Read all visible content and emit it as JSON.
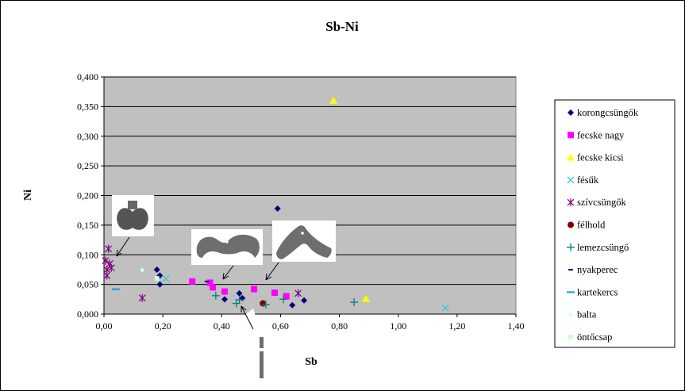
{
  "chart_data": {
    "type": "scatter",
    "title": "Sb-Ni",
    "xlabel": "Sb",
    "ylabel": "Ni",
    "xlim": [
      0,
      1.4
    ],
    "ylim": [
      0,
      0.4
    ],
    "x_ticks": [
      "0,00",
      "0,20",
      "0,40",
      "0,60",
      "0,80",
      "1,00",
      "1,20",
      "1,40"
    ],
    "y_ticks": [
      "0,000",
      "0,050",
      "0,100",
      "0,150",
      "0,200",
      "0,250",
      "0,300",
      "0,350",
      "0,400"
    ],
    "grid": "horizontal",
    "plot_background": "#c0c0c0",
    "legend_position": "right",
    "series": [
      {
        "name": "korongcsüngők",
        "marker": "diamond",
        "color": "#000080",
        "points": [
          [
            0.18,
            0.075
          ],
          [
            0.19,
            0.065
          ],
          [
            0.19,
            0.05
          ],
          [
            0.41,
            0.025
          ],
          [
            0.46,
            0.035
          ],
          [
            0.47,
            0.027
          ],
          [
            0.59,
            0.178
          ],
          [
            0.64,
            0.015
          ],
          [
            0.68,
            0.023
          ]
        ]
      },
      {
        "name": "fecske nagy",
        "marker": "square",
        "color": "#ff00ff",
        "points": [
          [
            0.3,
            0.055
          ],
          [
            0.36,
            0.053
          ],
          [
            0.37,
            0.045
          ],
          [
            0.41,
            0.038
          ],
          [
            0.51,
            0.042
          ],
          [
            0.58,
            0.036
          ],
          [
            0.62,
            0.03
          ]
        ]
      },
      {
        "name": "fecske kicsi",
        "marker": "triangle",
        "color": "#ffff00",
        "points": [
          [
            0.78,
            0.36
          ],
          [
            0.89,
            0.026
          ]
        ]
      },
      {
        "name": "fésűk",
        "marker": "x",
        "color": "#33cccc",
        "points": [
          [
            0.21,
            0.06
          ],
          [
            1.16,
            0.01
          ]
        ]
      },
      {
        "name": "szívcsüngők",
        "marker": "asterisk",
        "color": "#800080",
        "points": [
          [
            0.005,
            0.09
          ],
          [
            0.01,
            0.075
          ],
          [
            0.01,
            0.065
          ],
          [
            0.015,
            0.11
          ],
          [
            0.02,
            0.085
          ],
          [
            0.025,
            0.078
          ],
          [
            0.13,
            0.027
          ],
          [
            0.66,
            0.035
          ]
        ]
      },
      {
        "name": "félhold",
        "marker": "circle",
        "color": "#800000",
        "points": [
          [
            0.54,
            0.018
          ]
        ]
      },
      {
        "name": "lemezcsüngő",
        "marker": "plus",
        "color": "#008080",
        "points": [
          [
            0.38,
            0.031
          ],
          [
            0.45,
            0.018
          ],
          [
            0.46,
            0.024
          ],
          [
            0.55,
            0.016
          ],
          [
            0.61,
            0.025
          ],
          [
            0.85,
            0.02
          ]
        ]
      },
      {
        "name": "nyakperec",
        "marker": "dash-short",
        "color": "#000080",
        "points": [
          [
            0.35,
            0.055
          ]
        ]
      },
      {
        "name": "kartekercs",
        "marker": "dash",
        "color": "#00a0e0",
        "points": [
          [
            0.04,
            0.042
          ]
        ]
      },
      {
        "name": "balta",
        "marker": "diamond-small",
        "color": "#ccffff",
        "points": [
          [
            0.13,
            0.074
          ]
        ]
      },
      {
        "name": "öntőcsap",
        "marker": "square-small",
        "color": "#ccffcc",
        "points": [
          [
            0.18,
            0.06
          ]
        ]
      }
    ]
  }
}
